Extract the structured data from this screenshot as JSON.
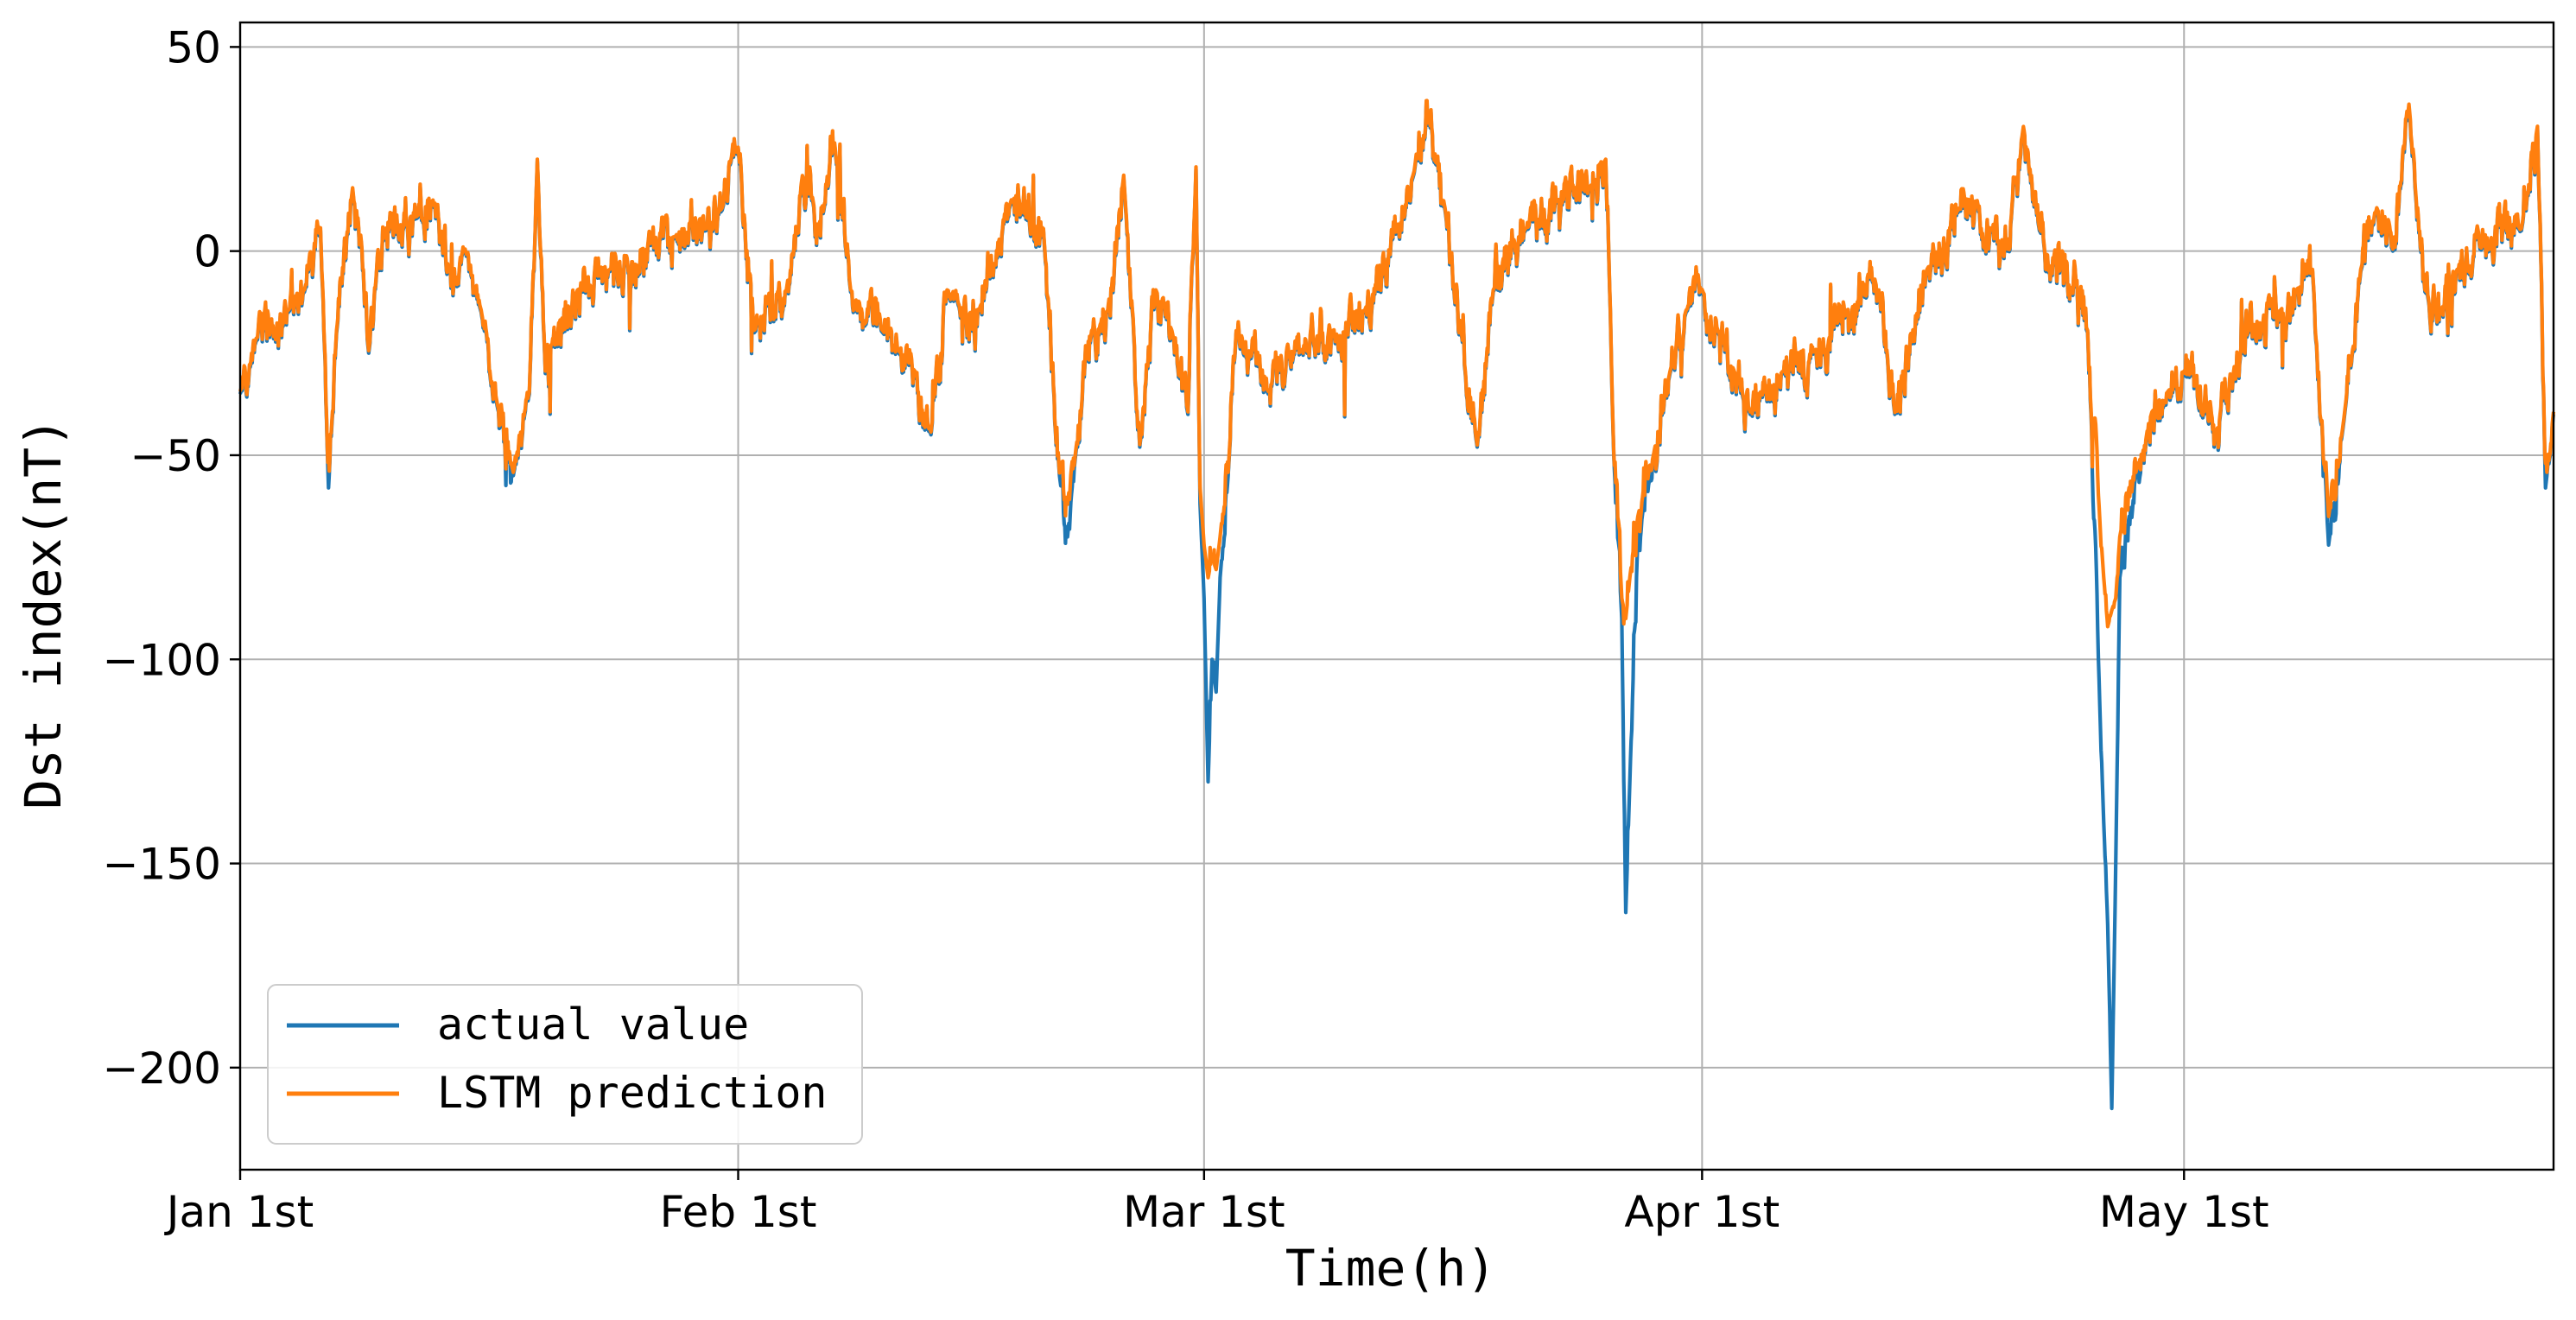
{
  "chart_data": {
    "type": "line",
    "xlabel": "Time(h)",
    "ylabel": "Dst index(nT)",
    "xlim": [
      "2000-01-01",
      "2000-05-24"
    ],
    "ylim": [
      -225,
      56
    ],
    "yticks": [
      50,
      0,
      -50,
      -100,
      -150,
      -200
    ],
    "ytick_labels": [
      "50",
      "0",
      "−50",
      "−100",
      "−150",
      "−200"
    ],
    "xticks": [
      "2000-01-01",
      "2000-02-01",
      "2000-03-01",
      "2000-04-01",
      "2000-05-01"
    ],
    "xtick_labels": [
      "Jan 1st",
      "Feb 1st",
      "Mar 1st",
      "Apr 1st",
      "May 1st"
    ],
    "grid": true,
    "legend_position": "lower-left",
    "x_unit": "hourly samples, Jan 1st to late May",
    "series": [
      {
        "name": "actual value",
        "color": "#1f77b4",
        "key_points": [
          [
            "2000-01-01",
            -35
          ],
          [
            "2000-01-02",
            -22
          ],
          [
            "2000-01-04",
            -15
          ],
          [
            "2000-01-05",
            -10
          ],
          [
            "2000-01-06",
            5
          ],
          [
            "2000-01-06T12",
            -58
          ],
          [
            "2000-01-07",
            -20
          ],
          [
            "2000-01-08",
            15
          ],
          [
            "2000-01-09",
            -25
          ],
          [
            "2000-01-10",
            5
          ],
          [
            "2000-01-12",
            8
          ],
          [
            "2000-01-13",
            12
          ],
          [
            "2000-01-14",
            -5
          ],
          [
            "2000-01-15",
            0
          ],
          [
            "2000-01-16",
            -15
          ],
          [
            "2000-01-17",
            -38
          ],
          [
            "2000-01-18",
            -55
          ],
          [
            "2000-01-19",
            -35
          ],
          [
            "2000-01-19T12",
            22
          ],
          [
            "2000-01-20",
            -30
          ],
          [
            "2000-01-22",
            -10
          ],
          [
            "2000-01-24",
            -5
          ],
          [
            "2000-01-26",
            0
          ],
          [
            "2000-01-28",
            3
          ],
          [
            "2000-01-30",
            5
          ],
          [
            "2000-01-31",
            10
          ],
          [
            "2000-02-01",
            25
          ],
          [
            "2000-02-02",
            -20
          ],
          [
            "2000-02-04",
            -10
          ],
          [
            "2000-02-05",
            18
          ],
          [
            "2000-02-06",
            5
          ],
          [
            "2000-02-07",
            26
          ],
          [
            "2000-02-08",
            -10
          ],
          [
            "2000-02-10",
            -20
          ],
          [
            "2000-02-11",
            -25
          ],
          [
            "2000-02-12",
            -30
          ],
          [
            "2000-02-13",
            -45
          ],
          [
            "2000-02-14",
            -10
          ],
          [
            "2000-02-16",
            -15
          ],
          [
            "2000-02-18",
            12
          ],
          [
            "2000-02-20",
            5
          ],
          [
            "2000-02-21",
            -55
          ],
          [
            "2000-02-21T12",
            -70
          ],
          [
            "2000-02-22",
            -50
          ],
          [
            "2000-02-23",
            -20
          ],
          [
            "2000-02-24",
            -15
          ],
          [
            "2000-02-25",
            18
          ],
          [
            "2000-02-26",
            -48
          ],
          [
            "2000-02-27",
            -10
          ],
          [
            "2000-02-28",
            -20
          ],
          [
            "2000-02-29",
            -40
          ],
          [
            "2000-02-29T12",
            20
          ],
          [
            "2000-02-29T18",
            -62
          ],
          [
            "2000-03-01",
            -85
          ],
          [
            "2000-03-01T06",
            -130
          ],
          [
            "2000-03-01T12",
            -100
          ],
          [
            "2000-03-01T18",
            -108
          ],
          [
            "2000-03-02",
            -80
          ],
          [
            "2000-03-02T12",
            -55
          ],
          [
            "2000-03-03",
            -20
          ],
          [
            "2000-03-05",
            -35
          ],
          [
            "2000-03-07",
            -25
          ],
          [
            "2000-03-09",
            -20
          ],
          [
            "2000-03-11",
            -15
          ],
          [
            "2000-03-13",
            5
          ],
          [
            "2000-03-14",
            18
          ],
          [
            "2000-03-15",
            32
          ],
          [
            "2000-03-16",
            10
          ],
          [
            "2000-03-17",
            -20
          ],
          [
            "2000-03-18",
            -48
          ],
          [
            "2000-03-19",
            -10
          ],
          [
            "2000-03-21",
            5
          ],
          [
            "2000-03-23",
            12
          ],
          [
            "2000-03-25",
            15
          ],
          [
            "2000-03-26",
            22
          ],
          [
            "2000-03-26T12",
            -50
          ],
          [
            "2000-03-27",
            -90
          ],
          [
            "2000-03-27T06",
            -162
          ],
          [
            "2000-03-27T12",
            -130
          ],
          [
            "2000-03-28",
            -70
          ],
          [
            "2000-03-29",
            -50
          ],
          [
            "2000-03-30",
            -30
          ],
          [
            "2000-03-31",
            -15
          ],
          [
            "2000-04-01",
            -10
          ],
          [
            "2000-04-02",
            -20
          ],
          [
            "2000-04-03",
            -30
          ],
          [
            "2000-04-04",
            -40
          ],
          [
            "2000-04-06",
            -30
          ],
          [
            "2000-04-08",
            -25
          ],
          [
            "2000-04-10",
            -15
          ],
          [
            "2000-04-12",
            -10
          ],
          [
            "2000-04-13",
            -40
          ],
          [
            "2000-04-15",
            -5
          ],
          [
            "2000-04-17",
            10
          ],
          [
            "2000-04-19",
            5
          ],
          [
            "2000-04-20",
            0
          ],
          [
            "2000-04-21",
            30
          ],
          [
            "2000-04-22",
            5
          ],
          [
            "2000-04-24",
            -10
          ],
          [
            "2000-04-25",
            -20
          ],
          [
            "2000-04-26",
            -140
          ],
          [
            "2000-04-26T06",
            -165
          ],
          [
            "2000-04-26T12",
            -210
          ],
          [
            "2000-04-26T18",
            -150
          ],
          [
            "2000-04-27",
            -80
          ],
          [
            "2000-04-28",
            -55
          ],
          [
            "2000-04-29",
            -40
          ],
          [
            "2000-04-30",
            -35
          ],
          [
            "2000-05-01",
            -30
          ],
          [
            "2000-05-03",
            -45
          ],
          [
            "2000-05-05",
            -20
          ],
          [
            "2000-05-07",
            -15
          ],
          [
            "2000-05-08",
            -10
          ],
          [
            "2000-05-09",
            -5
          ],
          [
            "2000-05-10",
            -72
          ],
          [
            "2000-05-11",
            -40
          ],
          [
            "2000-05-12",
            -5
          ],
          [
            "2000-05-13",
            10
          ],
          [
            "2000-05-14",
            0
          ],
          [
            "2000-05-15",
            35
          ],
          [
            "2000-05-16",
            -10
          ],
          [
            "2000-05-17",
            -15
          ],
          [
            "2000-05-18",
            -5
          ],
          [
            "2000-05-20",
            0
          ],
          [
            "2000-05-22",
            5
          ],
          [
            "2000-05-23",
            30
          ],
          [
            "2000-05-23T12",
            -58
          ],
          [
            "2000-05-24",
            -40
          ]
        ]
      },
      {
        "name": "LSTM prediction",
        "color": "#ff7f0e",
        "key_points": [
          [
            "2000-01-01",
            -33
          ],
          [
            "2000-01-02",
            -20
          ],
          [
            "2000-01-04",
            -14
          ],
          [
            "2000-01-05",
            -9
          ],
          [
            "2000-01-06",
            8
          ],
          [
            "2000-01-06T12",
            -50
          ],
          [
            "2000-01-07",
            -18
          ],
          [
            "2000-01-08",
            15
          ],
          [
            "2000-01-09",
            -23
          ],
          [
            "2000-01-10",
            5
          ],
          [
            "2000-01-12",
            8
          ],
          [
            "2000-01-13",
            12
          ],
          [
            "2000-01-14",
            -5
          ],
          [
            "2000-01-15",
            0
          ],
          [
            "2000-01-16",
            -14
          ],
          [
            "2000-01-17",
            -35
          ],
          [
            "2000-01-18",
            -50
          ],
          [
            "2000-01-19",
            -33
          ],
          [
            "2000-01-19T12",
            22
          ],
          [
            "2000-01-20",
            -28
          ],
          [
            "2000-01-22",
            -10
          ],
          [
            "2000-01-24",
            -5
          ],
          [
            "2000-01-26",
            0
          ],
          [
            "2000-01-28",
            3
          ],
          [
            "2000-01-30",
            5
          ],
          [
            "2000-01-31",
            10
          ],
          [
            "2000-02-01",
            24
          ],
          [
            "2000-02-02",
            -18
          ],
          [
            "2000-02-04",
            -10
          ],
          [
            "2000-02-05",
            18
          ],
          [
            "2000-02-06",
            5
          ],
          [
            "2000-02-07",
            26
          ],
          [
            "2000-02-08",
            -10
          ],
          [
            "2000-02-10",
            -20
          ],
          [
            "2000-02-11",
            -24
          ],
          [
            "2000-02-12",
            -28
          ],
          [
            "2000-02-13",
            -42
          ],
          [
            "2000-02-14",
            -10
          ],
          [
            "2000-02-16",
            -15
          ],
          [
            "2000-02-18",
            13
          ],
          [
            "2000-02-20",
            5
          ],
          [
            "2000-02-21",
            -52
          ],
          [
            "2000-02-21T12",
            -62
          ],
          [
            "2000-02-22",
            -45
          ],
          [
            "2000-02-23",
            -20
          ],
          [
            "2000-02-24",
            -15
          ],
          [
            "2000-02-25",
            19
          ],
          [
            "2000-02-26",
            -46
          ],
          [
            "2000-02-27",
            -10
          ],
          [
            "2000-02-28",
            -20
          ],
          [
            "2000-02-29",
            -38
          ],
          [
            "2000-02-29T12",
            22
          ],
          [
            "2000-02-29T18",
            -58
          ],
          [
            "2000-03-01",
            -72
          ],
          [
            "2000-03-01T06",
            -80
          ],
          [
            "2000-03-01T12",
            -75
          ],
          [
            "2000-03-01T18",
            -78
          ],
          [
            "2000-03-02",
            -70
          ],
          [
            "2000-03-02T12",
            -50
          ],
          [
            "2000-03-03",
            -20
          ],
          [
            "2000-03-05",
            -33
          ],
          [
            "2000-03-07",
            -25
          ],
          [
            "2000-03-09",
            -20
          ],
          [
            "2000-03-11",
            -15
          ],
          [
            "2000-03-13",
            5
          ],
          [
            "2000-03-14",
            18
          ],
          [
            "2000-03-15",
            33
          ],
          [
            "2000-03-16",
            10
          ],
          [
            "2000-03-17",
            -20
          ],
          [
            "2000-03-18",
            -48
          ],
          [
            "2000-03-19",
            -10
          ],
          [
            "2000-03-21",
            5
          ],
          [
            "2000-03-23",
            12
          ],
          [
            "2000-03-25",
            16
          ],
          [
            "2000-03-26",
            22
          ],
          [
            "2000-03-26T12",
            -45
          ],
          [
            "2000-03-27",
            -85
          ],
          [
            "2000-03-27T06",
            -90
          ],
          [
            "2000-03-27T12",
            -80
          ],
          [
            "2000-03-28",
            -65
          ],
          [
            "2000-03-29",
            -48
          ],
          [
            "2000-03-30",
            -30
          ],
          [
            "2000-03-31",
            -15
          ],
          [
            "2000-04-01",
            -8
          ],
          [
            "2000-04-02",
            -20
          ],
          [
            "2000-04-03",
            -28
          ],
          [
            "2000-04-04",
            -38
          ],
          [
            "2000-04-06",
            -30
          ],
          [
            "2000-04-08",
            -25
          ],
          [
            "2000-04-10",
            -15
          ],
          [
            "2000-04-12",
            -10
          ],
          [
            "2000-04-13",
            -40
          ],
          [
            "2000-04-15",
            -5
          ],
          [
            "2000-04-17",
            10
          ],
          [
            "2000-04-19",
            5
          ],
          [
            "2000-04-20",
            0
          ],
          [
            "2000-04-21",
            30
          ],
          [
            "2000-04-22",
            5
          ],
          [
            "2000-04-24",
            -10
          ],
          [
            "2000-04-25",
            -20
          ],
          [
            "2000-04-26",
            -80
          ],
          [
            "2000-04-26T06",
            -92
          ],
          [
            "2000-04-26T12",
            -88
          ],
          [
            "2000-04-26T18",
            -85
          ],
          [
            "2000-04-27",
            -70
          ],
          [
            "2000-04-28",
            -50
          ],
          [
            "2000-04-29",
            -38
          ],
          [
            "2000-04-30",
            -33
          ],
          [
            "2000-05-01",
            -28
          ],
          [
            "2000-05-03",
            -42
          ],
          [
            "2000-05-05",
            -20
          ],
          [
            "2000-05-07",
            -15
          ],
          [
            "2000-05-08",
            -10
          ],
          [
            "2000-05-09",
            -5
          ],
          [
            "2000-05-10",
            -65
          ],
          [
            "2000-05-11",
            -38
          ],
          [
            "2000-05-12",
            -5
          ],
          [
            "2000-05-13",
            12
          ],
          [
            "2000-05-14",
            0
          ],
          [
            "2000-05-15",
            43
          ],
          [
            "2000-05-16",
            -10
          ],
          [
            "2000-05-17",
            -15
          ],
          [
            "2000-05-18",
            -5
          ],
          [
            "2000-05-20",
            0
          ],
          [
            "2000-05-22",
            5
          ],
          [
            "2000-05-23",
            31
          ],
          [
            "2000-05-23T12",
            -52
          ],
          [
            "2000-05-24",
            -38
          ]
        ]
      }
    ]
  }
}
